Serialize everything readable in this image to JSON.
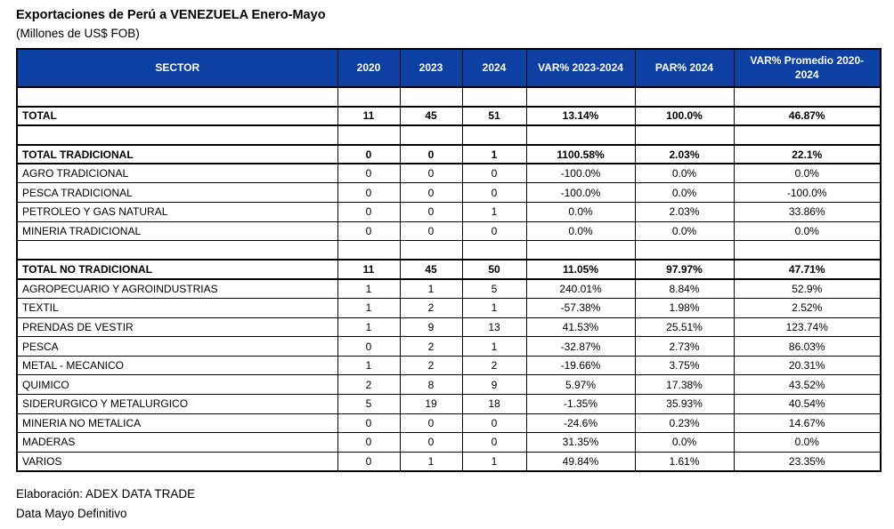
{
  "page": {
    "title": "Exportaciones de Perú a VENEZUELA Enero-Mayo",
    "subtitle": "(Millones de US$ FOB)",
    "footer_source": "Elaboración: ADEX DATA TRADE",
    "footer_note": "Data Mayo Definitivo"
  },
  "colors": {
    "header_background": "#0c41a3",
    "header_text": "#ffffff",
    "grid_lines": "#000000"
  },
  "table": {
    "columns": [
      "SECTOR",
      "2020",
      "2023",
      "2024",
      "VAR% 2023-2024",
      "PAR% 2024",
      "VAR% Promedio 2020-2024"
    ],
    "rows": [
      {
        "type": "spacer",
        "cells": [
          "",
          "",
          "",
          "",
          "",
          "",
          ""
        ]
      },
      {
        "type": "total",
        "cells": [
          "TOTAL",
          "11",
          "45",
          "51",
          "13.14%",
          "100.0%",
          "46.87%"
        ]
      },
      {
        "type": "spacer",
        "cells": [
          "",
          "",
          "",
          "",
          "",
          "",
          ""
        ]
      },
      {
        "type": "total",
        "cells": [
          "TOTAL TRADICIONAL",
          "0",
          "0",
          "1",
          "1100.58%",
          "2.03%",
          "22.1%"
        ]
      },
      {
        "type": "data",
        "cells": [
          "AGRO TRADICIONAL",
          "0",
          "0",
          "0",
          "-100.0%",
          "0.0%",
          "0.0%"
        ]
      },
      {
        "type": "data",
        "cells": [
          "PESCA TRADICIONAL",
          "0",
          "0",
          "0",
          "-100.0%",
          "0.0%",
          "-100.0%"
        ]
      },
      {
        "type": "data",
        "cells": [
          "PETROLEO Y GAS NATURAL",
          "0",
          "0",
          "1",
          "0.0%",
          "2.03%",
          "33.86%"
        ]
      },
      {
        "type": "data",
        "cells": [
          "MINERIA TRADICIONAL",
          "0",
          "0",
          "0",
          "0.0%",
          "0.0%",
          "0.0%"
        ]
      },
      {
        "type": "spacer",
        "cells": [
          "",
          "",
          "",
          "",
          "",
          "",
          ""
        ]
      },
      {
        "type": "total",
        "cells": [
          "TOTAL NO TRADICIONAL",
          "11",
          "45",
          "50",
          "11.05%",
          "97.97%",
          "47.71%"
        ]
      },
      {
        "type": "data",
        "cells": [
          "AGROPECUARIO Y AGROINDUSTRIAS",
          "1",
          "1",
          "5",
          "240.01%",
          "8.84%",
          "52.9%"
        ]
      },
      {
        "type": "data",
        "cells": [
          "TEXTIL",
          "1",
          "2",
          "1",
          "-57.38%",
          "1.98%",
          "2.52%"
        ]
      },
      {
        "type": "data",
        "cells": [
          "PRENDAS DE VESTIR",
          "1",
          "9",
          "13",
          "41.53%",
          "25.51%",
          "123.74%"
        ]
      },
      {
        "type": "data",
        "cells": [
          "PESCA",
          "0",
          "2",
          "1",
          "-32.87%",
          "2.73%",
          "86.03%"
        ]
      },
      {
        "type": "data",
        "cells": [
          "METAL - MECANICO",
          "1",
          "2",
          "2",
          "-19.66%",
          "3.75%",
          "20.31%"
        ]
      },
      {
        "type": "data",
        "cells": [
          "QUIMICO",
          "2",
          "8",
          "9",
          "5.97%",
          "17.38%",
          "43.52%"
        ]
      },
      {
        "type": "data",
        "cells": [
          "SIDERURGICO Y METALURGICO",
          "5",
          "19",
          "18",
          "-1.35%",
          "35.93%",
          "40.54%"
        ]
      },
      {
        "type": "data",
        "cells": [
          "MINERIA NO METALICA",
          "0",
          "0",
          "0",
          "-24.6%",
          "0.23%",
          "14.67%"
        ]
      },
      {
        "type": "data",
        "cells": [
          "MADERAS",
          "0",
          "0",
          "0",
          "31.35%",
          "0.0%",
          "0.0%"
        ]
      },
      {
        "type": "data",
        "cells": [
          "VARIOS",
          "0",
          "1",
          "1",
          "49.84%",
          "1.61%",
          "23.35%"
        ]
      }
    ]
  }
}
